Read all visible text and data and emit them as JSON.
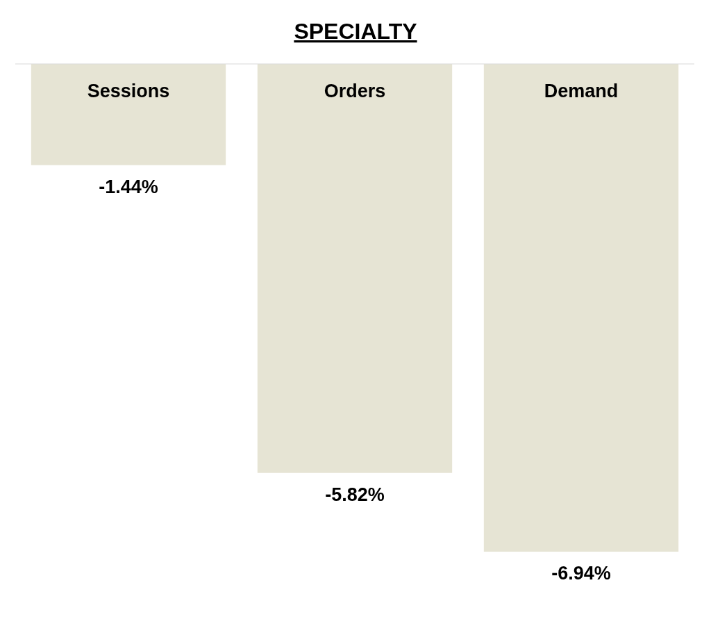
{
  "chart_data": {
    "type": "bar",
    "title": "SPECIALTY",
    "categories": [
      "Sessions",
      "Orders",
      "Demand"
    ],
    "values": [
      -1.44,
      -5.82,
      -6.94
    ],
    "value_labels": [
      "-1.44%",
      "-5.82%",
      "-6.94%"
    ],
    "color": "#e6e4d4"
  }
}
